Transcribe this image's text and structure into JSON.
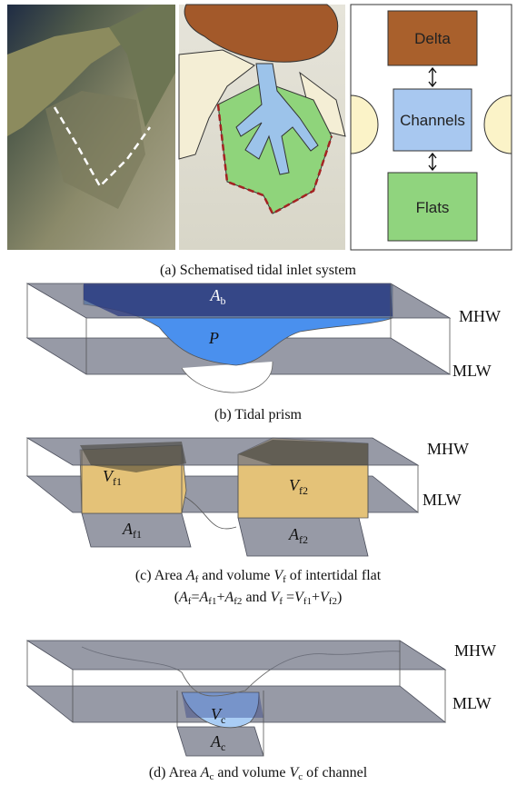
{
  "panel_a": {
    "boxes": [
      "Delta",
      "Channels",
      "Flats"
    ],
    "caption": "(a) Schematised tidal inlet system"
  },
  "panel_b": {
    "area_label": {
      "symbol": "A",
      "subscript": "b"
    },
    "prism_label": "P",
    "upper_level": "MHW",
    "lower_level": "MLW",
    "caption": "(b) Tidal prism"
  },
  "panel_c": {
    "volume_labels": [
      {
        "symbol": "V",
        "subscript": "f1"
      },
      {
        "symbol": "V",
        "subscript": "f2"
      }
    ],
    "area_labels": [
      {
        "symbol": "A",
        "subscript": "f1"
      },
      {
        "symbol": "A",
        "subscript": "f2"
      }
    ],
    "upper_level": "MHW",
    "lower_level": "MLW",
    "caption": [
      "(c) Area ",
      "A",
      "f",
      " and volume ",
      "V",
      "f",
      " of intertidal flat"
    ],
    "formula": [
      "(",
      "A",
      "f",
      "=",
      "A",
      "f1",
      "+",
      "A",
      "f2",
      " and ",
      "V",
      "f",
      " =",
      "V",
      "f1",
      "+",
      "V",
      "f2",
      ")"
    ]
  },
  "panel_d": {
    "volume_label": {
      "symbol": "V",
      "subscript": "c"
    },
    "area_label": {
      "symbol": "A",
      "subscript": "c"
    },
    "upper_level": "MHW",
    "lower_level": "MLW",
    "caption": [
      "(d) Area ",
      "A",
      "c",
      " and volume ",
      "V",
      "c",
      " of channel"
    ]
  }
}
